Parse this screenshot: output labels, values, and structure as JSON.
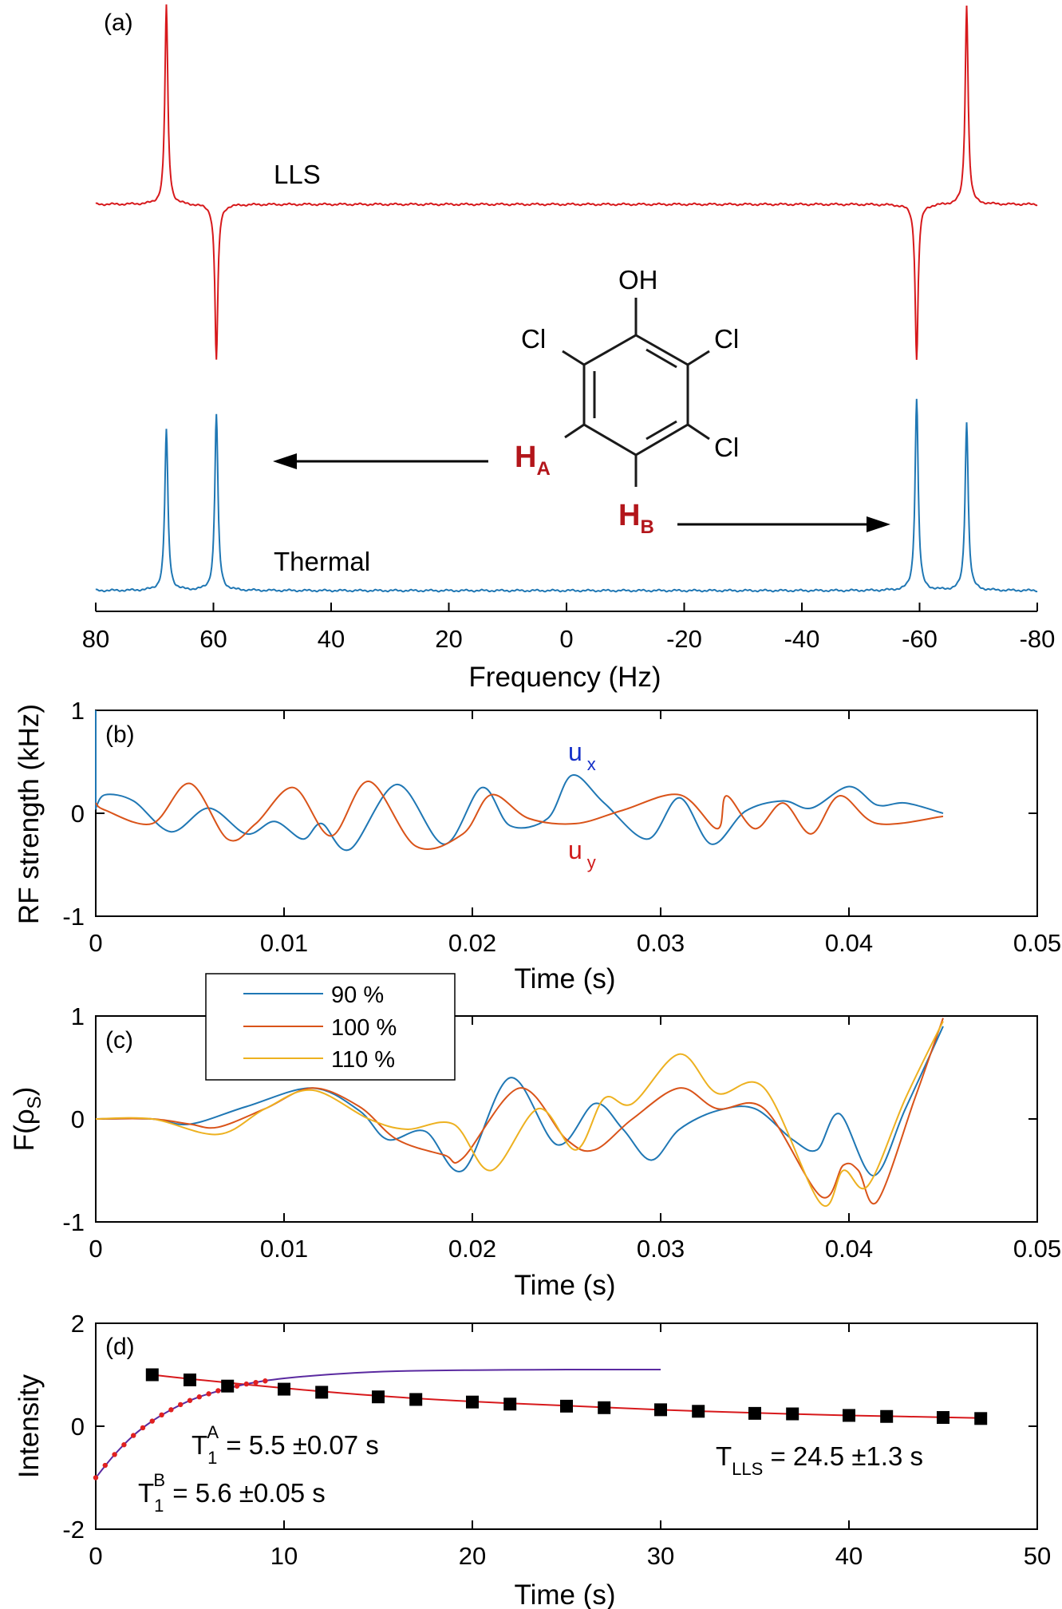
{
  "figure": {
    "panels": [
      "(a)",
      "(b)",
      "(c)",
      "(d)"
    ]
  },
  "chart_data": [
    {
      "type": "line",
      "panel": "(a)",
      "title": "",
      "xlabel": "Frequency (Hz)",
      "ylabel": "",
      "xlim": [
        80,
        -80
      ],
      "x_reversed": true,
      "x_ticks": [
        "80",
        "60",
        "40",
        "20",
        "0",
        "-20",
        "-40",
        "-60",
        "-80"
      ],
      "series": [
        {
          "name": "LLS",
          "color": "#d7191c",
          "peaks": [
            {
              "x": 68,
              "y": 1.0
            },
            {
              "x": 59.5,
              "y": -0.78
            },
            {
              "x": -59.5,
              "y": -0.78
            },
            {
              "x": 68.0,
              "y": 0
            },
            {
              "x": -68,
              "y": 1.0
            }
          ]
        },
        {
          "name": "Thermal",
          "color": "#1f77b4",
          "peaks": [
            {
              "x": 68,
              "y": 0.84
            },
            {
              "x": 59.5,
              "y": 0.92
            },
            {
              "x": -59.5,
              "y": 1.0
            },
            {
              "x": -68,
              "y": 0.88
            }
          ]
        }
      ],
      "molecule": {
        "substituents": [
          "OH",
          "Cl",
          "Cl",
          "Cl"
        ],
        "protons": [
          {
            "label": "H",
            "sub": "A"
          },
          {
            "label": "H",
            "sub": "B"
          }
        ],
        "label_color": "#b3161b"
      }
    },
    {
      "type": "line",
      "panel": "(b)",
      "title": "",
      "xlabel": "Time (s)",
      "ylabel": "RF strength (kHz)",
      "xlim": [
        0,
        0.05
      ],
      "ylim": [
        -1,
        1
      ],
      "x_ticks": [
        "0",
        "0.01",
        "0.02",
        "0.03",
        "0.04",
        "0.05"
      ],
      "y_ticks": [
        "1",
        "0",
        "-1"
      ],
      "series": [
        {
          "name": "u",
          "sub": "x",
          "color": "#1f77b4",
          "label_color": "#1530c8",
          "x": [
            0,
            0.0005,
            0.002,
            0.004,
            0.006,
            0.008,
            0.0095,
            0.011,
            0.012,
            0.0135,
            0.016,
            0.0185,
            0.0205,
            0.022,
            0.024,
            0.0253,
            0.027,
            0.0293,
            0.031,
            0.0327,
            0.0345,
            0.0365,
            0.038,
            0.04,
            0.0415,
            0.043,
            0.045
          ],
          "y": [
            0.05,
            0.18,
            0.12,
            -0.18,
            0.05,
            -0.2,
            -0.08,
            -0.25,
            -0.1,
            -0.35,
            0.28,
            -0.3,
            0.25,
            -0.12,
            -0.05,
            0.37,
            0.1,
            -0.25,
            0.15,
            -0.3,
            0.02,
            0.12,
            0.05,
            0.26,
            0.08,
            0.1,
            0
          ]
        },
        {
          "name": "u",
          "sub": "y",
          "color": "#d95319",
          "label_color": "#d01c1c",
          "x": [
            0,
            0.0005,
            0.003,
            0.005,
            0.007,
            0.0085,
            0.0105,
            0.0125,
            0.0145,
            0.017,
            0.0195,
            0.021,
            0.023,
            0.0255,
            0.028,
            0.031,
            0.033,
            0.0335,
            0.035,
            0.0365,
            0.038,
            0.0395,
            0.0415,
            0.045
          ],
          "y": [
            0.1,
            0.03,
            -0.1,
            0.29,
            -0.25,
            -0.1,
            0.25,
            -0.22,
            0.31,
            -0.32,
            -0.2,
            0.18,
            -0.05,
            -0.1,
            0.03,
            0.18,
            -0.15,
            0.17,
            -0.15,
            0.1,
            -0.2,
            0.17,
            -0.1,
            -0.03
          ]
        }
      ]
    },
    {
      "type": "line",
      "panel": "(c)",
      "title": "",
      "xlabel": "Time (s)",
      "ylabel": "F(ρ",
      "ylabel_sub": "S",
      "ylabel_close": ")",
      "xlim": [
        0,
        0.05
      ],
      "ylim": [
        -1,
        1
      ],
      "x_ticks": [
        "0",
        "0.01",
        "0.02",
        "0.03",
        "0.04",
        "0.05"
      ],
      "y_ticks": [
        "1",
        "0",
        "-1"
      ],
      "legend_position": "top-left",
      "series": [
        {
          "name": "90 %",
          "color": "#1f77b4",
          "x": [
            0,
            0.003,
            0.005,
            0.008,
            0.0115,
            0.014,
            0.0155,
            0.0175,
            0.0195,
            0.022,
            0.0245,
            0.0265,
            0.028,
            0.0295,
            0.031,
            0.033,
            0.035,
            0.037,
            0.0383,
            0.0395,
            0.0413,
            0.043,
            0.045
          ],
          "y": [
            0,
            0,
            -0.05,
            0.12,
            0.3,
            0.08,
            -0.2,
            -0.12,
            -0.5,
            0.4,
            -0.25,
            0.15,
            -0.1,
            -0.4,
            -0.1,
            0.08,
            0.1,
            -0.2,
            -0.3,
            0.05,
            -0.55,
            0.1,
            0.9
          ]
        },
        {
          "name": "100 %",
          "color": "#d95319",
          "x": [
            0,
            0.003,
            0.005,
            0.0065,
            0.009,
            0.0115,
            0.014,
            0.016,
            0.0185,
            0.0195,
            0.0225,
            0.025,
            0.0265,
            0.0285,
            0.031,
            0.033,
            0.0355,
            0.0385,
            0.0397,
            0.0405,
            0.0415,
            0.0435,
            0.045
          ],
          "y": [
            0,
            0,
            -0.05,
            -0.08,
            0.1,
            0.3,
            0.12,
            -0.2,
            -0.35,
            -0.38,
            0.3,
            -0.2,
            -0.3,
            0.0,
            0.3,
            0.1,
            0.1,
            -0.75,
            -0.45,
            -0.5,
            -0.8,
            0.2,
            0.98
          ]
        },
        {
          "name": "110 %",
          "color": "#edb120",
          "x": [
            0,
            0.003,
            0.0065,
            0.009,
            0.0115,
            0.0145,
            0.0165,
            0.019,
            0.021,
            0.0235,
            0.0255,
            0.027,
            0.0285,
            0.031,
            0.033,
            0.0355,
            0.0385,
            0.0397,
            0.041,
            0.043,
            0.045
          ],
          "y": [
            0,
            0,
            -0.15,
            0.1,
            0.28,
            0.0,
            -0.1,
            -0.05,
            -0.5,
            0.1,
            -0.3,
            0.2,
            0.15,
            0.63,
            0.25,
            0.3,
            -0.82,
            -0.5,
            -0.65,
            0.2,
            0.95
          ]
        }
      ]
    },
    {
      "type": "scatter",
      "panel": "(d)",
      "title": "",
      "xlabel": "Time (s)",
      "ylabel": "Intensity",
      "xlim": [
        0,
        50
      ],
      "ylim": [
        -2,
        2
      ],
      "x_ticks": [
        "0",
        "10",
        "20",
        "30",
        "40",
        "50"
      ],
      "y_ticks": [
        "2",
        "0",
        "-2"
      ],
      "series": [
        {
          "name": "LLS",
          "color": "#000000",
          "marker": "square",
          "x": [
            3,
            5,
            7,
            10,
            12,
            15,
            17,
            20,
            22,
            25,
            27,
            30,
            32,
            35,
            37,
            40,
            42,
            45,
            47
          ],
          "y": [
            1.0,
            0.9,
            0.78,
            0.72,
            0.66,
            0.57,
            0.52,
            0.47,
            0.43,
            0.39,
            0.36,
            0.32,
            0.29,
            0.25,
            0.24,
            0.21,
            0.19,
            0.17,
            0.15
          ]
        },
        {
          "name": "LLS fit",
          "color": "#d7191c",
          "type": "line",
          "x": [
            3,
            5,
            10,
            15,
            20,
            25,
            30,
            35,
            40,
            47
          ],
          "y": [
            1.0,
            0.92,
            0.74,
            0.59,
            0.48,
            0.4,
            0.32,
            0.26,
            0.21,
            0.16
          ]
        },
        {
          "name": "T1 recovery",
          "color": "#5a2aa0",
          "type": "line",
          "x": [
            0,
            1,
            2,
            3,
            4,
            5,
            6,
            8,
            10,
            13,
            16,
            20,
            25,
            30
          ],
          "y": [
            -1.0,
            -0.55,
            -0.18,
            0.1,
            0.32,
            0.5,
            0.63,
            0.82,
            0.93,
            1.02,
            1.07,
            1.09,
            1.1,
            1.1
          ]
        },
        {
          "name": "T1 recovery points",
          "color": "#e02020",
          "marker": "dot",
          "x": [
            0,
            0.5,
            1,
            1.5,
            2,
            2.5,
            3,
            3.5,
            4,
            4.5,
            5,
            5.5,
            6,
            6.5,
            7,
            7.5,
            8,
            8.5,
            9
          ],
          "y": [
            -1.0,
            -0.76,
            -0.55,
            -0.36,
            -0.18,
            -0.03,
            0.1,
            0.22,
            0.32,
            0.42,
            0.5,
            0.57,
            0.63,
            0.69,
            0.74,
            0.78,
            0.82,
            0.85,
            0.88
          ]
        }
      ],
      "annotations": [
        {
          "id": "t1a",
          "main": "T",
          "sub": "1",
          "sup": "A",
          "text": " = 5.5  ±0.07 s"
        },
        {
          "id": "t1b",
          "main": "T",
          "sub": "1",
          "sup": "B",
          "text": " = 5.6  ±0.05 s"
        },
        {
          "id": "tlls",
          "main": "T",
          "sub": "LLS",
          "sup": "",
          "text": " = 24.5  ±1.3 s"
        }
      ]
    }
  ]
}
